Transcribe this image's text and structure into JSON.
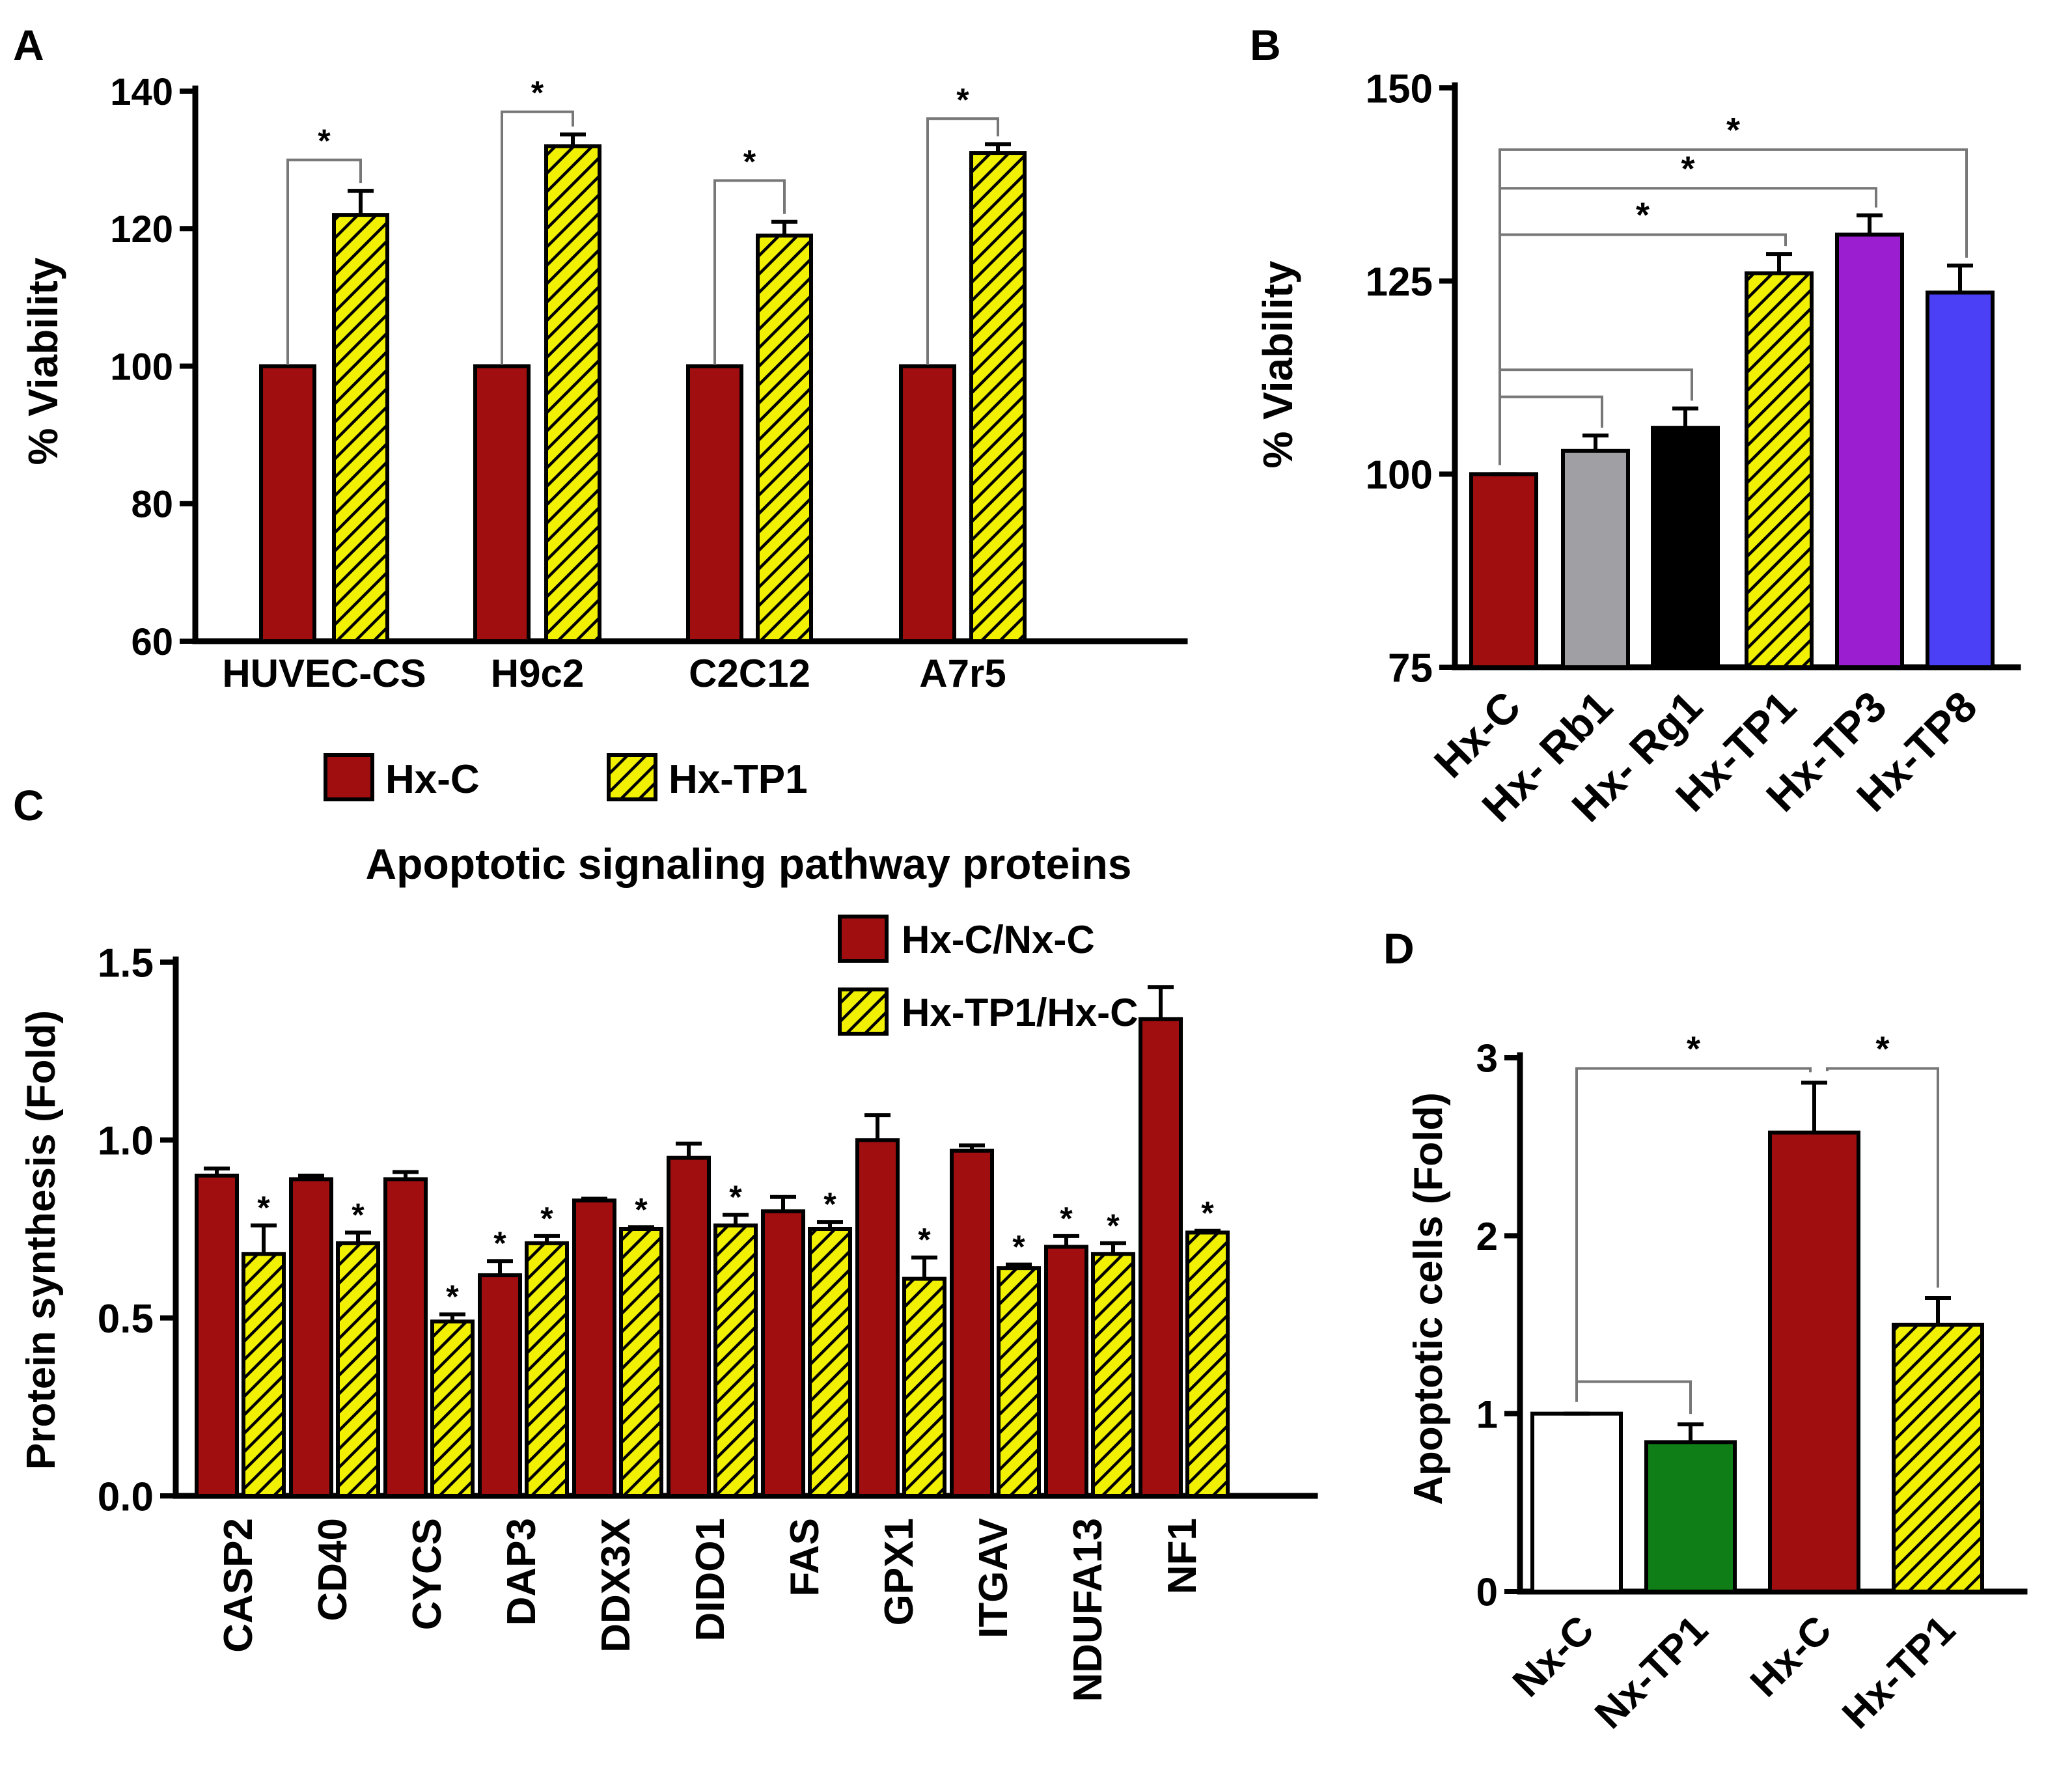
{
  "colors": {
    "hx_c": "#A00E10",
    "hatch_bg": "#F1F000",
    "hatch_line": "#000000",
    "gray": "#A0A0A4",
    "black": "#000000",
    "purple": "#9B1FD0",
    "blue": "#4B40F5",
    "green": "#0F7E16",
    "white": "#FFFFFF",
    "bracket": "#777777"
  },
  "chart_data": [
    {
      "id": "A",
      "panel_label": "A",
      "type": "bar",
      "title": "",
      "ylabel": "% Viability",
      "xlabel": "",
      "ylim": [
        60,
        140
      ],
      "yticks": [
        60,
        80,
        100,
        120,
        140
      ],
      "categories": [
        "HUVEC-CS",
        "H9c2",
        "C2C12",
        "A7r5"
      ],
      "series": [
        {
          "name": "Hx-C",
          "values": [
            100,
            100,
            100,
            100
          ],
          "errors": [
            0,
            0,
            0,
            0
          ],
          "color": "hx_c"
        },
        {
          "name": "Hx-TP1",
          "values": [
            122,
            132,
            119,
            131
          ],
          "errors": [
            3.5,
            1.7,
            2.0,
            1.3
          ],
          "color": "hatch"
        }
      ],
      "brackets": [
        {
          "from": [
            0,
            0
          ],
          "to": [
            0,
            1
          ],
          "y": 130,
          "label": "*"
        },
        {
          "from": [
            1,
            0
          ],
          "to": [
            1,
            1
          ],
          "y": 137,
          "label": "*"
        },
        {
          "from": [
            2,
            0
          ],
          "to": [
            2,
            1
          ],
          "y": 127,
          "label": "*"
        },
        {
          "from": [
            3,
            0
          ],
          "to": [
            3,
            1
          ],
          "y": 136,
          "label": "*"
        }
      ],
      "legend": {
        "placement": "bottom",
        "entries": [
          "Hx-C",
          "Hx-TP1"
        ]
      }
    },
    {
      "id": "B",
      "panel_label": "B",
      "type": "bar",
      "title": "",
      "ylabel": "% Viability",
      "xlabel": "",
      "ylim": [
        75,
        150
      ],
      "yticks": [
        75,
        100,
        125,
        150
      ],
      "categories": [
        "Hx-C",
        "Hx- Rb1",
        "Hx- Rg1",
        "Hx-TP1",
        "Hx-TP3",
        "Hx-TP8"
      ],
      "values": [
        100,
        103,
        106,
        126,
        131,
        123.5
      ],
      "errors": [
        0,
        2,
        2.5,
        2.5,
        2.5,
        3.5
      ],
      "colors": [
        "hx_c",
        "gray",
        "black",
        "hatch",
        "purple",
        "blue"
      ],
      "brackets": [
        {
          "from": 0,
          "to": 1,
          "y": 110,
          "label": ""
        },
        {
          "from": 0,
          "to": 2,
          "y": 113.5,
          "label": ""
        },
        {
          "from": 0,
          "to": 3,
          "y": 131,
          "label": "*"
        },
        {
          "from": 0,
          "to": 4,
          "y": 137,
          "label": "*"
        },
        {
          "from": 0,
          "to": 5,
          "y": 142,
          "label": "*"
        }
      ]
    },
    {
      "id": "C",
      "panel_label": "C",
      "type": "bar",
      "title": "Apoptotic signaling pathway proteins",
      "ylabel": "Protein synthesis (Fold)",
      "xlabel": "",
      "ylim": [
        0,
        1.5
      ],
      "yticks": [
        "0.0",
        "0.5",
        "1.0",
        "1.5"
      ],
      "categories": [
        "CASP2",
        "CD40",
        "CYCS",
        "DAP3",
        "DDX3X",
        "DIDO1",
        "FAS",
        "GPX1",
        "ITGAV",
        "NDUFA13",
        "NF1"
      ],
      "series": [
        {
          "name": "Hx-C/Nx-C",
          "color": "hx_c",
          "values": [
            0.9,
            0.89,
            0.89,
            0.62,
            0.83,
            0.95,
            0.8,
            1.0,
            0.97,
            0.7,
            1.34
          ],
          "errors": [
            0.02,
            0.01,
            0.02,
            0.04,
            0.005,
            0.04,
            0.04,
            0.07,
            0.015,
            0.03,
            0.09
          ],
          "significant": [
            false,
            false,
            false,
            true,
            false,
            false,
            false,
            false,
            false,
            true,
            false
          ]
        },
        {
          "name": "Hx-TP1/Hx-C",
          "color": "hatch",
          "values": [
            0.68,
            0.71,
            0.49,
            0.71,
            0.75,
            0.76,
            0.75,
            0.61,
            0.64,
            0.68,
            0.74
          ],
          "errors": [
            0.08,
            0.03,
            0.02,
            0.02,
            0.005,
            0.03,
            0.02,
            0.06,
            0.01,
            0.03,
            0.005
          ],
          "significant": [
            true,
            true,
            true,
            true,
            true,
            true,
            true,
            true,
            true,
            true,
            true
          ]
        }
      ],
      "star_label": "*",
      "legend": {
        "placement": "top-right",
        "entries": [
          "Hx-C/Nx-C",
          "Hx-TP1/Hx-C"
        ]
      }
    },
    {
      "id": "D",
      "panel_label": "D",
      "type": "bar",
      "title": "",
      "ylabel": "Apoptotic cells (Fold)",
      "xlabel": "",
      "ylim": [
        0,
        3
      ],
      "yticks": [
        0,
        1,
        2,
        3
      ],
      "categories": [
        "Nx-C",
        "Nx-TP1",
        "Hx-C",
        "Hx-TP1"
      ],
      "values": [
        1.0,
        0.84,
        2.58,
        1.5
      ],
      "errors": [
        0,
        0.1,
        0.28,
        0.15
      ],
      "colors": [
        "white",
        "green",
        "hx_c",
        "hatch"
      ],
      "brackets": [
        {
          "from": 0,
          "to": 1,
          "y": 1.18,
          "label": ""
        },
        {
          "from": 0,
          "to": 2,
          "y": 2.94,
          "label": "*"
        },
        {
          "from": 2,
          "to": 3,
          "y": 2.94,
          "label": "*"
        }
      ]
    }
  ]
}
